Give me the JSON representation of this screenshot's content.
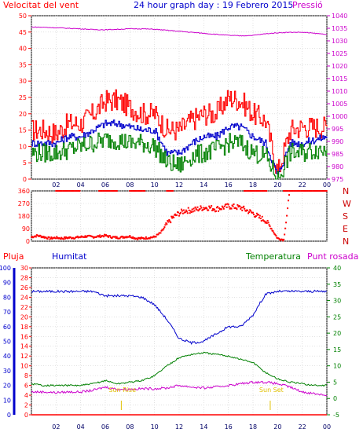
{
  "chart_data": [
    {
      "type": "line",
      "title": "24 hour graph day : 19 Febrero 2015",
      "left_axis_title": "Velocitat del vent",
      "right_axis_title": "Pressió",
      "y_left": {
        "min": 0,
        "max": 50,
        "ticks": [
          "0",
          "5",
          "10",
          "15",
          "20",
          "25",
          "30",
          "35",
          "40",
          "45",
          "50"
        ]
      },
      "y_right": {
        "min": 975,
        "max": 1040,
        "ticks": [
          "975",
          "980",
          "985",
          "990",
          "995",
          "1000",
          "1005",
          "1010",
          "1015",
          "1020",
          "1025",
          "1030",
          "1035",
          "1040"
        ]
      },
      "x_ticks": [
        "02",
        "04",
        "06",
        "08",
        "10",
        "12",
        "14",
        "16",
        "18",
        "20",
        "22",
        "00"
      ],
      "x_hours": [
        0,
        1,
        2,
        3,
        4,
        5,
        6,
        7,
        8,
        9,
        10,
        11,
        12,
        13,
        14,
        15,
        16,
        17,
        18,
        19,
        20,
        21,
        22,
        23,
        24
      ],
      "series": [
        {
          "color": "#ff0000",
          "axis": "left",
          "values": [
            15,
            15,
            14,
            17,
            17,
            20,
            24,
            24,
            22,
            20,
            20,
            15,
            15,
            18,
            20,
            20,
            25,
            24,
            20,
            18,
            2,
            15,
            16,
            16,
            16
          ]
        },
        {
          "color": "#0000cc",
          "axis": "left",
          "values": [
            11,
            11,
            11,
            13,
            13,
            15,
            17,
            17,
            16,
            15,
            15,
            8,
            8,
            11,
            13,
            13,
            16,
            16,
            13,
            11,
            1,
            11,
            11,
            12,
            13
          ]
        },
        {
          "color": "#008000",
          "axis": "left",
          "values": [
            8,
            8,
            8,
            9,
            10,
            11,
            12,
            12,
            11,
            11,
            10,
            5,
            4,
            7,
            8,
            9,
            11,
            11,
            8,
            7,
            0,
            8,
            8,
            9,
            9
          ]
        },
        {
          "color": "#cc00cc",
          "axis": "right",
          "values": [
            1035.5,
            1035.4,
            1035.2,
            1035,
            1034.8,
            1034.5,
            1034.4,
            1034.6,
            1034.8,
            1034.8,
            1034.6,
            1034.2,
            1033.8,
            1033.4,
            1033,
            1032.6,
            1032.2,
            1032,
            1032.2,
            1032.8,
            1033.2,
            1033.4,
            1033.4,
            1033,
            1032.6
          ]
        }
      ]
    },
    {
      "type": "scatter",
      "y_axis": {
        "min": 0,
        "max": 360,
        "ticks": [
          "0",
          "90",
          "180",
          "270",
          "360"
        ]
      },
      "direction_labels": [
        "N",
        "W",
        "S",
        "E",
        "N"
      ],
      "color": "#ff0000",
      "x_hours": [
        0,
        0.5,
        1,
        1.5,
        2,
        2.5,
        3,
        3.5,
        4,
        4.5,
        5,
        5.5,
        6,
        6.5,
        7,
        7.5,
        8,
        8.5,
        9,
        9.5,
        10,
        10.5,
        11,
        11.5,
        12,
        12.5,
        13,
        13.5,
        14,
        14.5,
        15,
        15.5,
        16,
        16.5,
        17,
        17.5,
        18,
        18.5,
        19,
        19.5,
        20,
        20.5,
        21,
        21.5,
        22,
        22.5,
        23,
        23.5,
        24
      ],
      "values": [
        30,
        40,
        30,
        20,
        25,
        20,
        25,
        25,
        30,
        35,
        30,
        35,
        40,
        30,
        25,
        30,
        35,
        20,
        20,
        25,
        30,
        60,
        120,
        170,
        200,
        220,
        220,
        230,
        240,
        240,
        230,
        240,
        250,
        245,
        240,
        220,
        200,
        170,
        150,
        90,
        20,
        10,
        360,
        360,
        360,
        360,
        360,
        360,
        360
      ],
      "top_band_hours": [
        [
          2,
          4
        ],
        [
          5.5,
          7
        ],
        [
          8,
          9.3
        ],
        [
          11,
          11.5
        ],
        [
          17.3,
          19.2
        ],
        [
          20.5,
          24
        ]
      ]
    },
    {
      "type": "line",
      "left_axis_1_title": "Pluja",
      "left_axis_2_title": "Humitat",
      "right_axis_1_title": "Temperatura",
      "right_axis_2_title": "Punt rosada",
      "y_humidity": {
        "min": 0,
        "max": 100,
        "ticks": [
          "0",
          "10",
          "20",
          "30",
          "40",
          "50",
          "60",
          "70",
          "80",
          "90",
          "100"
        ]
      },
      "y_rain": {
        "min": 0,
        "max": 30,
        "ticks": [
          "0",
          "2",
          "4",
          "6",
          "8",
          "10",
          "12",
          "14",
          "16",
          "18",
          "20",
          "22",
          "24",
          "26",
          "28",
          "30"
        ]
      },
      "y_temp": {
        "min": -5,
        "max": 40,
        "ticks": [
          "-5",
          "0",
          "5",
          "10",
          "15",
          "20",
          "25",
          "30",
          "35",
          "40"
        ]
      },
      "x_ticks": [
        "02",
        "04",
        "06",
        "08",
        "10",
        "12",
        "14",
        "16",
        "18",
        "20",
        "22",
        "00"
      ],
      "sunrise_label": "Sun Rise",
      "sunset_label": "Sun Set",
      "sunrise_hour": 7.3,
      "sunset_hour": 19.4,
      "x_hours": [
        0,
        1,
        2,
        3,
        4,
        5,
        6,
        7,
        8,
        9,
        10,
        11,
        12,
        13,
        14,
        15,
        16,
        17,
        18,
        19,
        20,
        21,
        22,
        23,
        24
      ],
      "series": [
        {
          "color": "#0000cc",
          "axis": "humidity",
          "values": [
            84,
            84,
            84,
            84,
            84,
            84,
            81,
            81,
            81,
            80,
            75,
            65,
            52,
            49,
            50,
            55,
            60,
            60,
            68,
            82,
            84,
            84,
            84,
            84,
            84
          ]
        },
        {
          "color": "#008000",
          "axis": "temp",
          "values": [
            4.5,
            4,
            4,
            4,
            4,
            4.5,
            5.5,
            4.5,
            5,
            5.5,
            7,
            10,
            12.5,
            13.5,
            14,
            13.5,
            13,
            12,
            11,
            8,
            6,
            5,
            4.5,
            4,
            4
          ]
        },
        {
          "color": "#cc00cc",
          "axis": "temp",
          "values": [
            2,
            2,
            1.8,
            2,
            2,
            2.5,
            3.5,
            2.8,
            2.8,
            3,
            3,
            3.2,
            4,
            3.5,
            3.2,
            3.5,
            4,
            4.5,
            5,
            5,
            4.5,
            3.5,
            2,
            1.5,
            1
          ]
        },
        {
          "color": "#ff0000",
          "axis": "rain",
          "values": [
            0,
            0,
            0,
            0,
            0,
            0,
            0,
            0,
            0,
            0,
            0,
            0,
            0,
            0,
            0,
            0,
            0,
            0,
            0,
            0,
            0,
            0,
            0,
            0,
            0
          ]
        }
      ]
    }
  ]
}
